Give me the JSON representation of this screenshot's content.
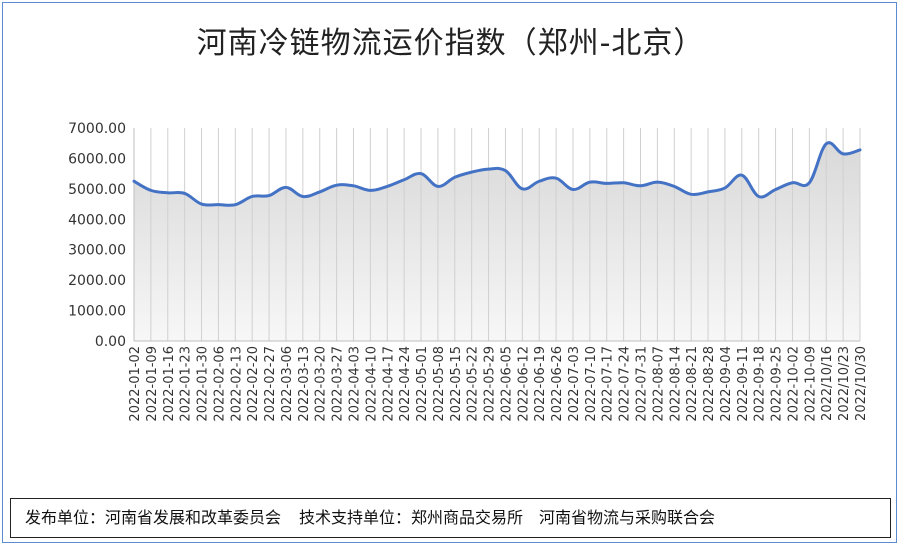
{
  "chart_data": {
    "type": "area",
    "title": "河南冷链物流运价指数（郑州-北京）",
    "ylim": [
      0,
      7000
    ],
    "yticks": [
      "0.00",
      "1000.00",
      "2000.00",
      "3000.00",
      "4000.00",
      "5000.00",
      "6000.00",
      "7000.00"
    ],
    "grid": "vertical",
    "legend": "none",
    "line_color": "#4472c4",
    "fill_color": "#e6e6e6",
    "categories": [
      "2022-01-02",
      "2022-01-09",
      "2022-01-16",
      "2022-01-23",
      "2022-01-30",
      "2022-02-06",
      "2022-02-13",
      "2022-02-20",
      "2022-02-27",
      "2022-03-06",
      "2022-03-13",
      "2022-03-20",
      "2022-03-27",
      "2022-04-03",
      "2022-04-10",
      "2022-04-17",
      "2022-04-24",
      "2022-05-01",
      "2022-05-08",
      "2022-05-15",
      "2022-05-22",
      "2022-05-29",
      "2022-06-05",
      "2022-06-12",
      "2022-06-19",
      "2022-06-26",
      "2022-07-03",
      "2022-07-10",
      "2022-07-17",
      "2022-07-24",
      "2022-07-31",
      "2022-08-07",
      "2022-08-14",
      "2022-08-21",
      "2022-08-28",
      "2022-09-04",
      "2022-09-11",
      "2022-09-18",
      "2022-09-25",
      "2022-10-02",
      "2022-10-09",
      "2022/10/16",
      "2022/10/23",
      "2022/10/30"
    ],
    "values": [
      5250,
      4950,
      4870,
      4850,
      4500,
      4480,
      4480,
      4750,
      4780,
      5050,
      4750,
      4900,
      5120,
      5100,
      4950,
      5080,
      5300,
      5500,
      5080,
      5380,
      5550,
      5650,
      5600,
      5000,
      5250,
      5350,
      4980,
      5220,
      5180,
      5200,
      5100,
      5220,
      5080,
      4820,
      4900,
      5030,
      5450,
      4750,
      4980,
      5200,
      5200,
      6480,
      6150,
      6280
    ]
  },
  "footer": {
    "publisher": "发布单位：河南省发展和改革委员会",
    "support": "技术支持单位：郑州商品交易所　河南省物流与采购联合会"
  }
}
